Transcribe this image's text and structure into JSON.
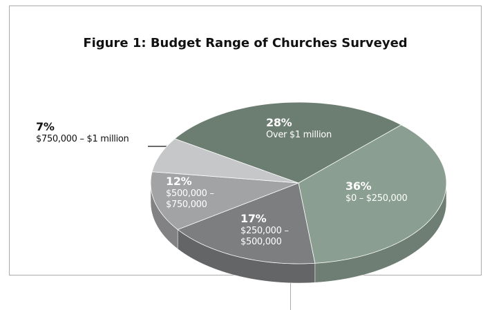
{
  "chart_data": {
    "type": "pie",
    "title": "Figure 1: Budget Range of Churches Surveyed",
    "categories": [
      "$0 – $250,000",
      "$250,000 – $500,000",
      "$500,000 – $750,000",
      "$750,000 – $1 million",
      "Over $1 million"
    ],
    "values": [
      36,
      17,
      12,
      7,
      28
    ],
    "value_labels": [
      "36%",
      "17%",
      "12%",
      "7%",
      "28%"
    ],
    "colors": [
      "#8a9e91",
      "#7d7e80",
      "#a2a3a5",
      "#c6c7c9",
      "#6c7d72"
    ]
  }
}
